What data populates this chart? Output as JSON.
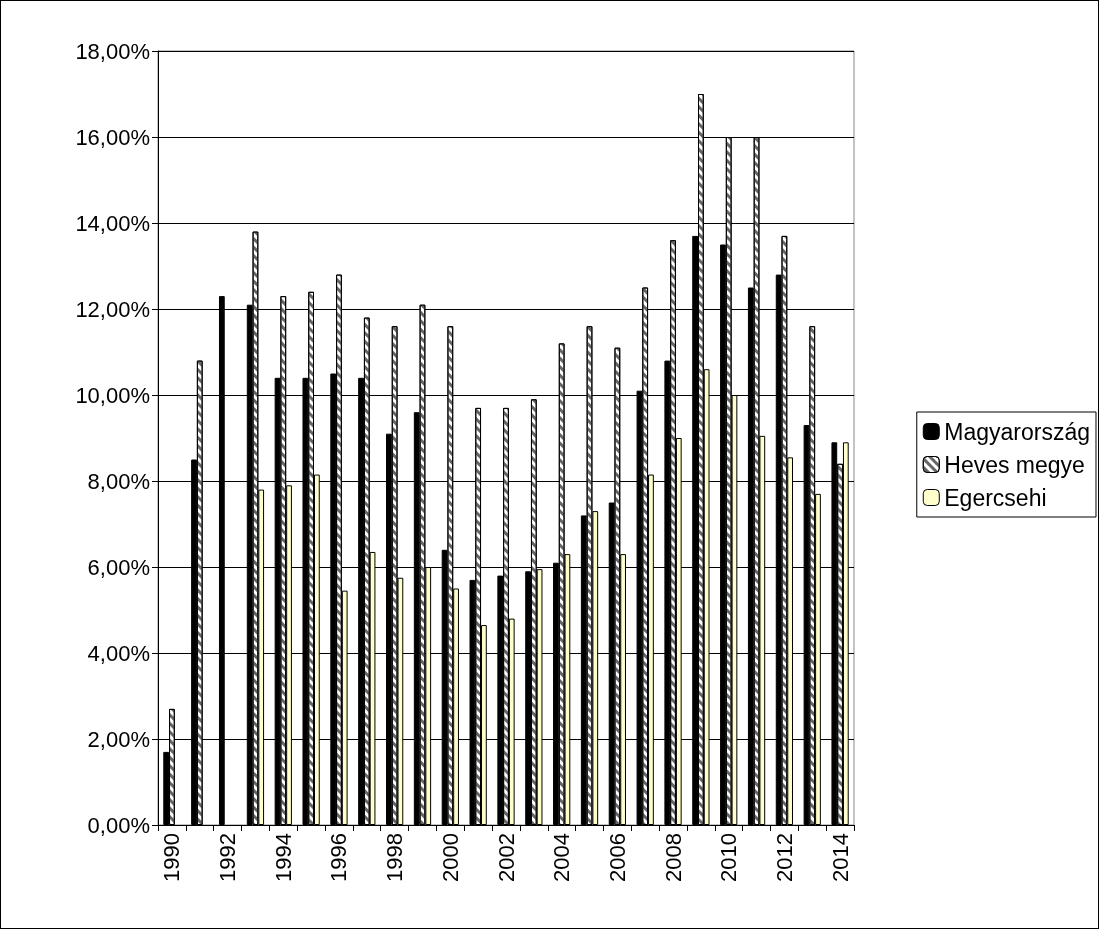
{
  "chart_data": {
    "type": "bar",
    "categories": [
      "1990",
      null,
      "1992",
      null,
      "1994",
      null,
      "1996",
      null,
      "1998",
      null,
      "2000",
      null,
      "2002",
      null,
      "2004",
      null,
      "2006",
      null,
      "2008",
      null,
      "2010",
      null,
      "2012",
      null,
      "2014"
    ],
    "series": [
      {
        "name": "Magyarország",
        "color": "#000000",
        "values": [
          1.7,
          8.5,
          12.3,
          12.1,
          10.4,
          10.4,
          10.5,
          10.4,
          9.1,
          9.6,
          6.4,
          5.7,
          5.8,
          5.9,
          6.1,
          7.2,
          7.5,
          10.1,
          10.8,
          13.7,
          13.5,
          12.5,
          12.8,
          9.3,
          8.9
        ]
      },
      {
        "name": "Heves megye",
        "color": "#ffffff",
        "values": [
          2.7,
          10.8,
          null,
          13.8,
          12.3,
          12.4,
          12.8,
          11.8,
          11.6,
          12.1,
          11.6,
          9.7,
          9.7,
          9.9,
          11.2,
          11.6,
          11.1,
          12.5,
          13.6,
          17.0,
          16.0,
          16.0,
          13.7,
          11.6,
          8.4
        ]
      },
      {
        "name": "Egercsehi",
        "color": "#ffffcc",
        "values": [
          null,
          null,
          null,
          7.8,
          7.9,
          8.15,
          5.45,
          6.35,
          5.75,
          6.0,
          5.5,
          4.65,
          4.8,
          5.95,
          6.3,
          7.3,
          6.3,
          8.15,
          9.0,
          10.6,
          10.0,
          9.05,
          8.55,
          7.7,
          8.9
        ]
      }
    ],
    "ylim": [
      0,
      18
    ],
    "yticks": [
      {
        "value": 0,
        "label": "0,00%"
      },
      {
        "value": 2,
        "label": "2,00%"
      },
      {
        "value": 4,
        "label": "4,00%"
      },
      {
        "value": 6,
        "label": "6,00%"
      },
      {
        "value": 8,
        "label": "8,00%"
      },
      {
        "value": 10,
        "label": "10,00%"
      },
      {
        "value": 12,
        "label": "12,00%"
      },
      {
        "value": 14,
        "label": "14,00%"
      },
      {
        "value": 16,
        "label": "16,00%"
      },
      {
        "value": 18,
        "label": "18,00%"
      }
    ],
    "grid": "y",
    "legend": "right"
  }
}
